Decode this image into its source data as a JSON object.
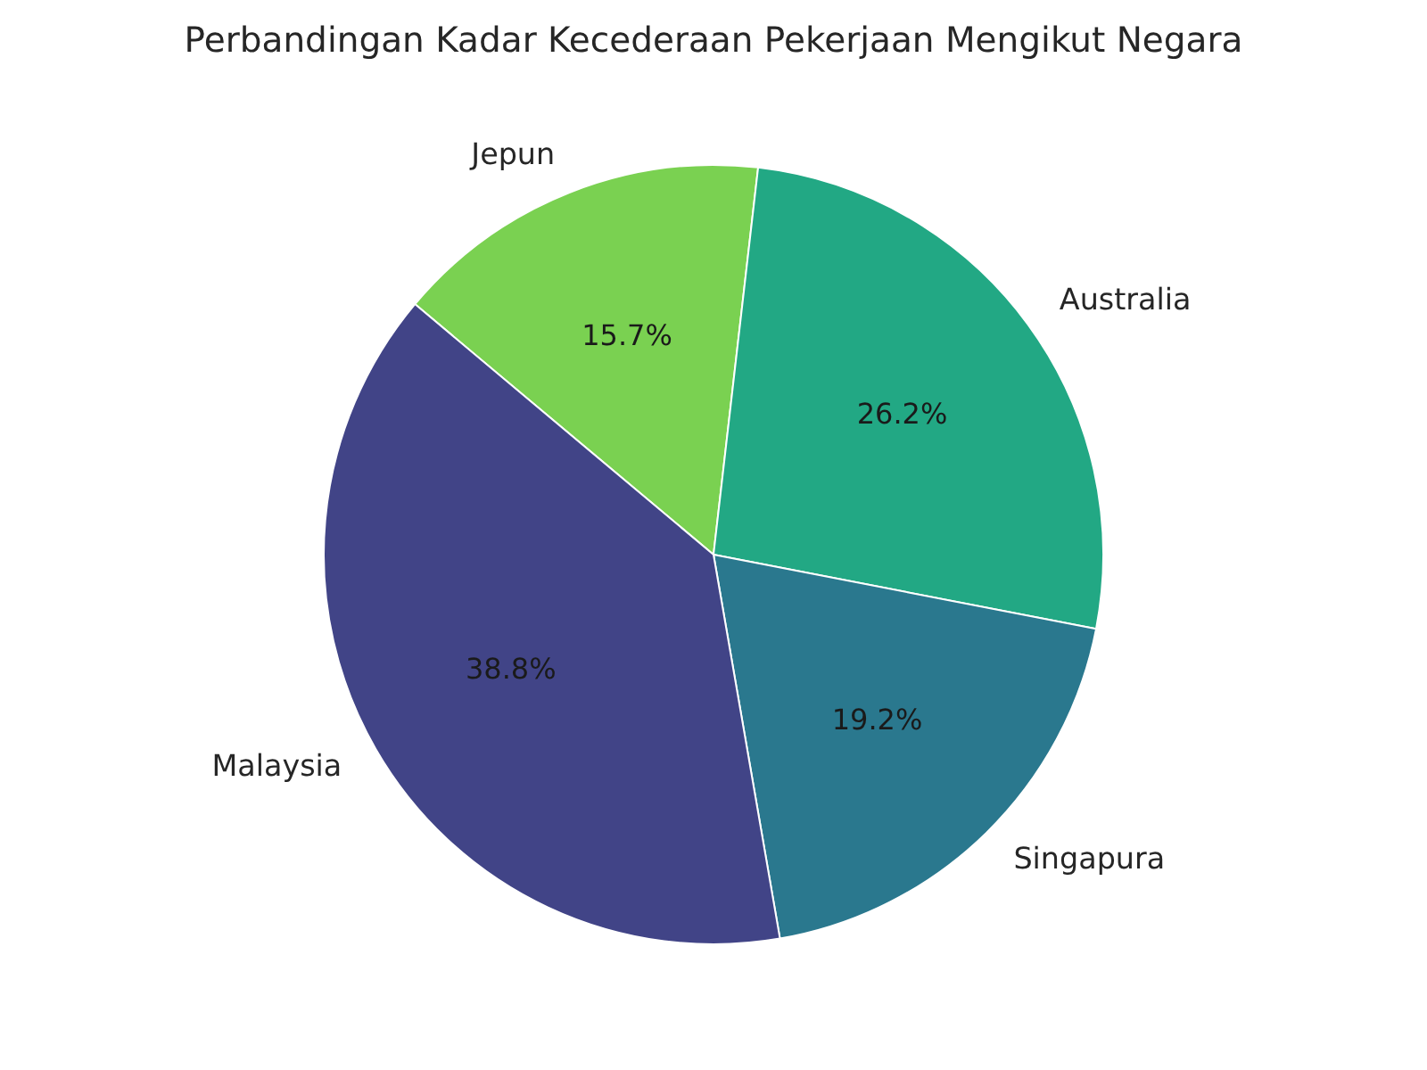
{
  "chart_data": {
    "type": "pie",
    "title": "Perbandingan Kadar Kecederaan Pekerjaan Mengikut Negara",
    "categories": [
      "Jepun",
      "Australia",
      "Singapura",
      "Malaysia"
    ],
    "values": [
      15.7,
      26.2,
      19.2,
      38.8
    ],
    "value_labels": [
      "15.7%",
      "26.2%",
      "19.2%",
      "38.8%"
    ],
    "colors": [
      "#7ad151",
      "#22a884",
      "#2a788e",
      "#414487"
    ],
    "legend": false
  }
}
